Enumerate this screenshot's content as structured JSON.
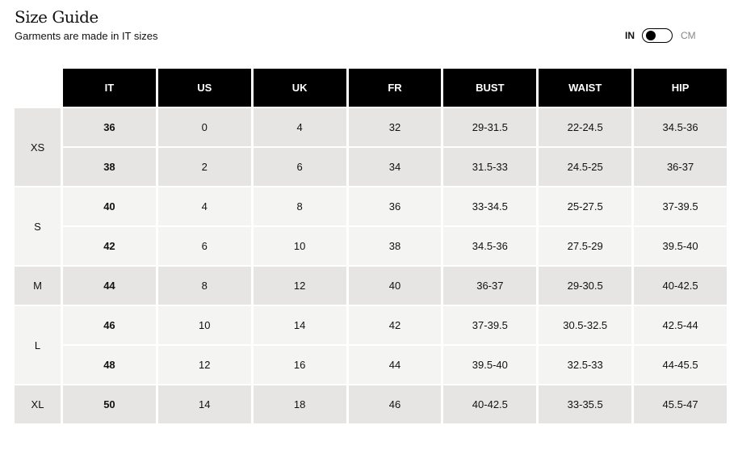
{
  "header": {
    "title": "Size Guide",
    "subtitle": "Garments are made in IT sizes"
  },
  "unit_toggle": {
    "left": "IN",
    "right": "CM",
    "selected": "IN"
  },
  "table": {
    "columns": [
      "IT",
      "US",
      "UK",
      "FR",
      "BUST",
      "WAIST",
      "HIP"
    ],
    "groups": [
      {
        "label": "XS",
        "rows": [
          [
            "36",
            "0",
            "4",
            "32",
            "29-31.5",
            "22-24.5",
            "34.5-36"
          ],
          [
            "38",
            "2",
            "6",
            "34",
            "31.5-33",
            "24.5-25",
            "36-37"
          ]
        ]
      },
      {
        "label": "S",
        "rows": [
          [
            "40",
            "4",
            "8",
            "36",
            "33-34.5",
            "25-27.5",
            "37-39.5"
          ],
          [
            "42",
            "6",
            "10",
            "38",
            "34.5-36",
            "27.5-29",
            "39.5-40"
          ]
        ]
      },
      {
        "label": "M",
        "rows": [
          [
            "44",
            "8",
            "12",
            "40",
            "36-37",
            "29-30.5",
            "40-42.5"
          ]
        ]
      },
      {
        "label": "L",
        "rows": [
          [
            "46",
            "10",
            "14",
            "42",
            "37-39.5",
            "30.5-32.5",
            "42.5-44"
          ],
          [
            "48",
            "12",
            "16",
            "44",
            "39.5-40",
            "32.5-33",
            "44-45.5"
          ]
        ]
      },
      {
        "label": "XL",
        "rows": [
          [
            "50",
            "14",
            "18",
            "46",
            "40-42.5",
            "33-35.5",
            "45.5-47"
          ]
        ]
      }
    ]
  },
  "colors": {
    "header_bg": "#000000",
    "group_dark": "#e6e5e3",
    "group_light": "#f4f4f2"
  }
}
